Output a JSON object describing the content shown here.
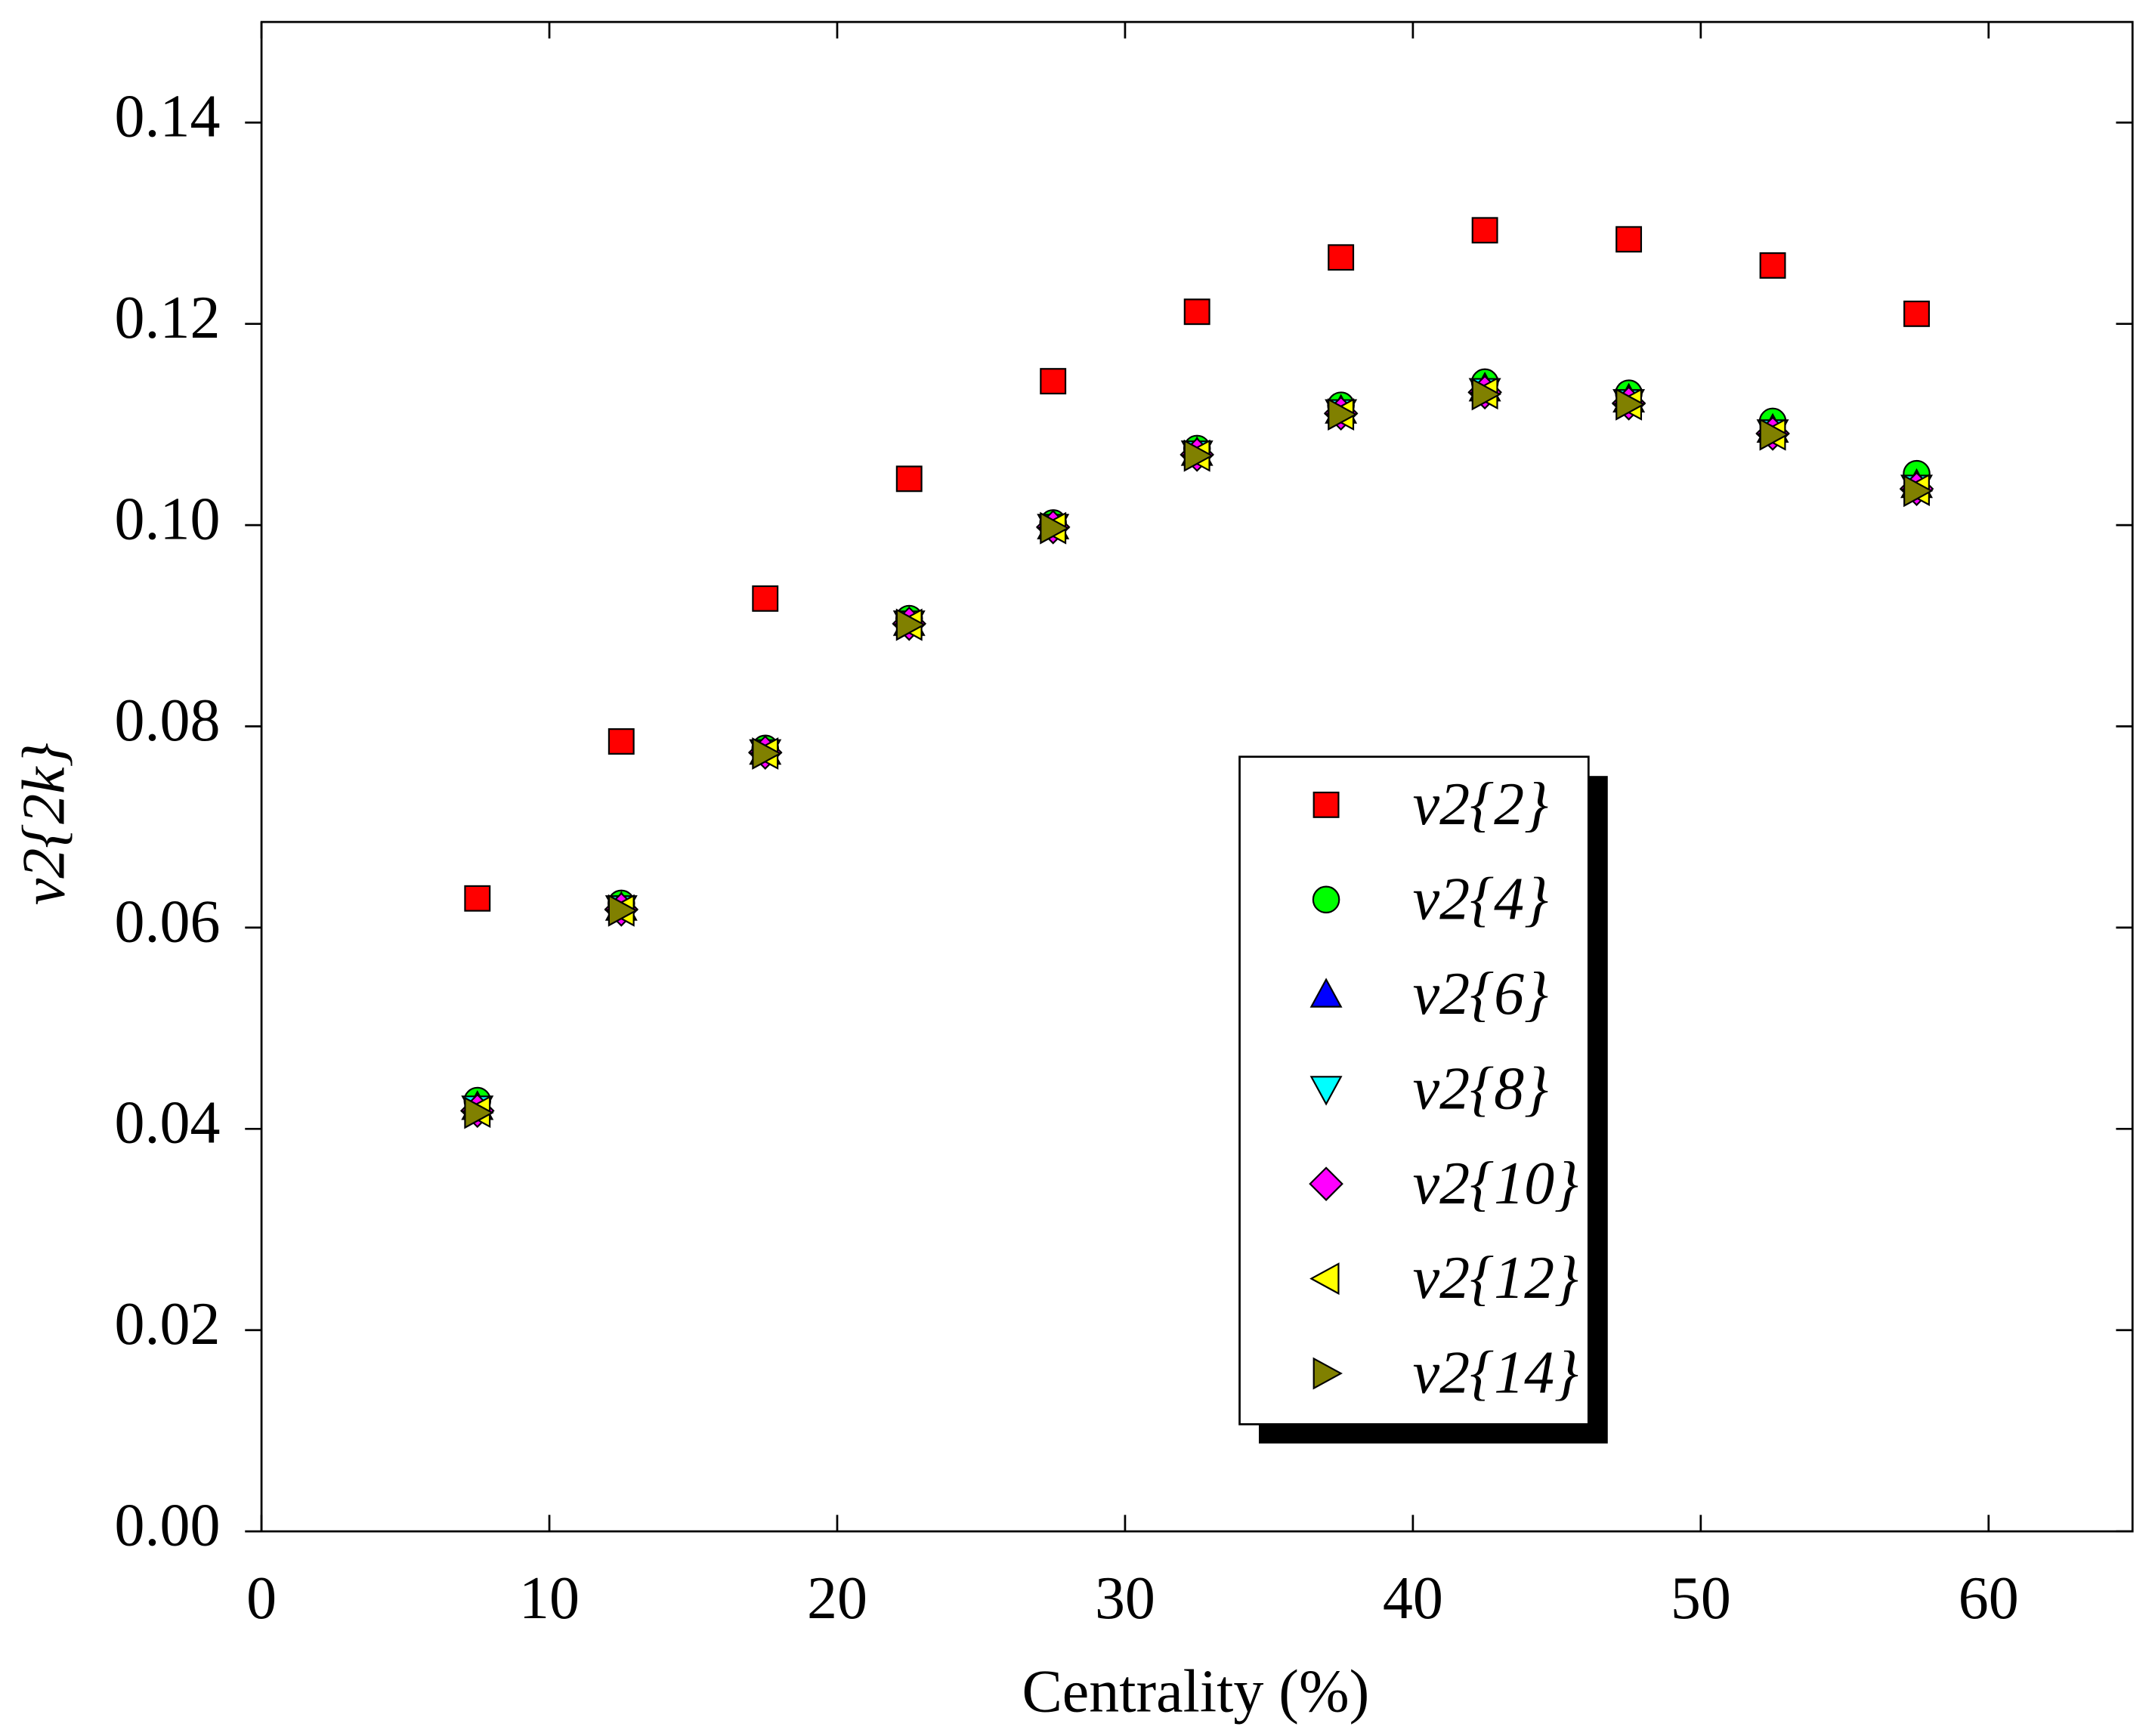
{
  "chart_data": {
    "type": "scatter",
    "xlabel": "Centrality (%)",
    "ylabel": "v2{2k}",
    "x": [
      7.5,
      12.5,
      17.5,
      22.5,
      27.5,
      32.5,
      37.5,
      42.5,
      47.5,
      52.5,
      57.5
    ],
    "series": [
      {
        "name": "v2{2}",
        "color": "#ff0000",
        "marker": "square",
        "values": [
          0.0629,
          0.0785,
          0.0927,
          0.1046,
          0.1143,
          0.1212,
          0.1266,
          0.1293,
          0.1284,
          0.1258,
          0.121
        ]
      },
      {
        "name": "v2{4}",
        "color": "#00ff00",
        "marker": "circle",
        "values": [
          0.0428,
          0.0624,
          0.0778,
          0.0907,
          0.1002,
          0.1076,
          0.1119,
          0.1142,
          0.1131,
          0.1103,
          0.1051
        ]
      },
      {
        "name": "v2{6}",
        "color": "#0000ff",
        "marker": "triangle-up",
        "values": [
          0.0422,
          0.062,
          0.0775,
          0.0903,
          0.0999,
          0.1072,
          0.1114,
          0.1136,
          0.1125,
          0.1095,
          0.104
        ]
      },
      {
        "name": "v2{8}",
        "color": "#00ffff",
        "marker": "triangle-down",
        "values": [
          0.042,
          0.0619,
          0.0774,
          0.0902,
          0.0998,
          0.1071,
          0.1112,
          0.1133,
          0.1122,
          0.1092,
          0.1037
        ]
      },
      {
        "name": "v2{10}",
        "color": "#ff00ff",
        "marker": "diamond",
        "values": [
          0.0418,
          0.0618,
          0.0774,
          0.0902,
          0.0998,
          0.107,
          0.1111,
          0.1132,
          0.1121,
          0.1091,
          0.1036
        ]
      },
      {
        "name": "v2{12}",
        "color": "#ffff00",
        "marker": "triangle-left",
        "values": [
          0.0417,
          0.0617,
          0.0773,
          0.0901,
          0.0997,
          0.1069,
          0.111,
          0.1131,
          0.112,
          0.109,
          0.1035
        ]
      },
      {
        "name": "v2{14}",
        "color": "#808000",
        "marker": "triangle-right",
        "values": [
          0.0416,
          0.0617,
          0.0773,
          0.0901,
          0.0997,
          0.1069,
          0.111,
          0.113,
          0.112,
          0.109,
          0.1034
        ]
      }
    ],
    "xlim": [
      0,
      65
    ],
    "ylim": [
      0,
      0.15
    ],
    "xticks": [
      0,
      10,
      20,
      30,
      40,
      50,
      60
    ],
    "yticks": [
      {
        "value": 0,
        "label": "0.00"
      },
      {
        "value": 0.02,
        "label": "0.02"
      },
      {
        "value": 0.04,
        "label": "0.04"
      },
      {
        "value": 0.06,
        "label": "0.06"
      },
      {
        "value": 0.08,
        "label": "0.08"
      },
      {
        "value": 0.1,
        "label": "0.10"
      },
      {
        "value": 0.12,
        "label": "0.12"
      },
      {
        "value": 0.14,
        "label": "0.14"
      }
    ],
    "grid": false
  }
}
